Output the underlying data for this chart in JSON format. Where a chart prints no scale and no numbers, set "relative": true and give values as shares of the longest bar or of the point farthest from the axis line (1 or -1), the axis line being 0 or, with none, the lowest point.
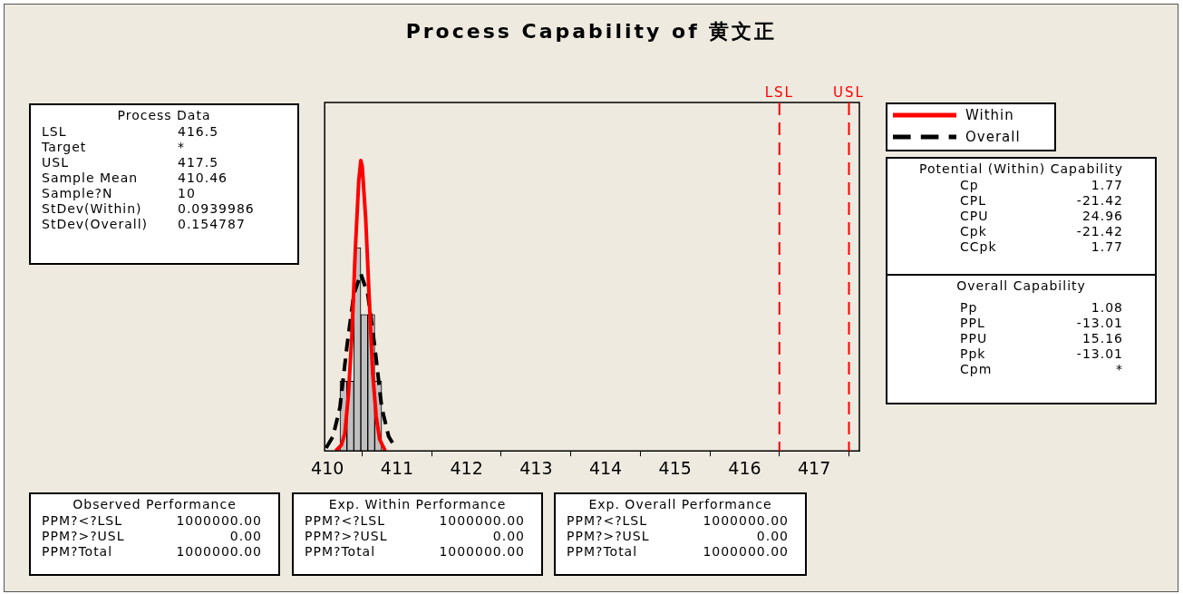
{
  "chart_data": [
    {
      "type": "histogram",
      "title": "Process Capability of 黄文正",
      "relative": true,
      "legend": "right",
      "xlim": [
        409.96,
        417.65
      ],
      "xticks": [
        410,
        411,
        412,
        413,
        414,
        415,
        416,
        417
      ],
      "series": [
        {
          "type": "histogram",
          "color": "#c0c0c0",
          "bins": [
            410.18,
            410.28,
            410.38,
            410.48,
            410.58,
            410.68,
            410.78
          ],
          "values": [
            0.24,
            0.24,
            0.7,
            0.47,
            0.47,
            0.24
          ]
        },
        {
          "type": "line",
          "name": "Within",
          "color": "#ff0000",
          "line_style": "solid",
          "x": [
            410.12,
            410.2,
            410.25,
            410.3,
            410.35,
            410.4,
            410.45,
            410.48,
            410.5,
            410.55,
            410.6,
            410.65,
            410.7,
            410.75,
            410.83
          ],
          "values": [
            0,
            0.02,
            0.06,
            0.19,
            0.39,
            0.69,
            0.93,
            1,
            0.98,
            0.8,
            0.53,
            0.27,
            0.12,
            0.04,
            0
          ]
        },
        {
          "type": "line",
          "name": "Overall",
          "color": "#000000",
          "line_style": "dashed",
          "x": [
            409.98,
            410.08,
            410.18,
            410.28,
            410.38,
            410.48,
            410.58,
            410.68,
            410.78,
            410.88,
            410.98
          ],
          "values": [
            0.01,
            0.05,
            0.15,
            0.36,
            0.54,
            0.61,
            0.54,
            0.36,
            0.15,
            0.05,
            0.01
          ]
        }
      ],
      "ref_lines": [
        {
          "axis": "x",
          "value": 416.5,
          "label": "LSL",
          "color": "#ff0000",
          "line_style": "dashed"
        },
        {
          "axis": "x",
          "value": 417.5,
          "label": "USL",
          "color": "#ff0000",
          "line_style": "dashed"
        }
      ]
    },
    {
      "type": "other",
      "title": "Process Data",
      "annotations": [
        "LSL",
        "416.5",
        "Target",
        "*",
        "USL",
        "417.5",
        "Sample Mean",
        "410.46",
        "Sample?N",
        "10",
        "StDev(Within)",
        "0.0939986",
        "StDev(Overall)",
        "0.154787"
      ]
    },
    {
      "type": "other",
      "title": "Potential (Within) Capability",
      "annotations": [
        "Cp",
        "1.77",
        "CPL",
        "-21.42",
        "CPU",
        "24.96",
        "Cpk",
        "-21.42",
        "CCpk",
        "1.77"
      ]
    },
    {
      "type": "other",
      "title": "Overall Capability",
      "annotations": [
        "Pp",
        "1.08",
        "PPL",
        "-13.01",
        "PPU",
        "15.16",
        "Ppk",
        "-13.01",
        "Cpm",
        "*"
      ]
    },
    {
      "type": "other",
      "title": "Observed Performance",
      "annotations": [
        "PPM?<?LSL",
        "1000000.00",
        "PPM?>?USL",
        "0.00",
        "PPM?Total",
        "1000000.00"
      ]
    },
    {
      "type": "other",
      "title": "Exp. Within Performance",
      "annotations": [
        "PPM?<?LSL",
        "1000000.00",
        "PPM?>?USL",
        "0.00",
        "PPM?Total",
        "1000000.00"
      ]
    },
    {
      "type": "other",
      "title": "Exp. Overall Performance",
      "annotations": [
        "PPM?<?LSL",
        "1000000.00",
        "PPM?>?USL",
        "0.00",
        "PPM?Total",
        "1000000.00"
      ]
    }
  ]
}
